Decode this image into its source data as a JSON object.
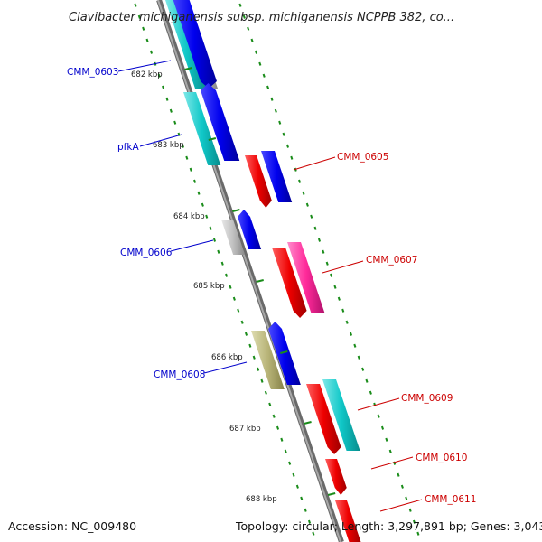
{
  "title": "Clavibacter michiganensis subsp. michiganensis NCPPB 382, co...",
  "footer": {
    "accession": "Accession: NC_009480",
    "summary": "Topology: circular; Length: 3,297,891 bp; Genes: 3,043"
  },
  "kbp_labels": [
    "682 kbp",
    "683 kbp",
    "684 kbp",
    "685 kbp",
    "686 kbp",
    "687 kbp",
    "688 kbp"
  ],
  "genes_left": [
    {
      "label": "CMM_0603",
      "color": "#0000cc"
    },
    {
      "label": "pfkA",
      "color": "#0000cc"
    },
    {
      "label": "CMM_0606",
      "color": "#0000cc"
    },
    {
      "label": "CMM_0608",
      "color": "#0000cc"
    }
  ],
  "genes_right": [
    {
      "label": "CMM_0605",
      "color": "#cc0000"
    },
    {
      "label": "CMM_0607",
      "color": "#cc0000"
    },
    {
      "label": "CMM_0609",
      "color": "#cc0000"
    },
    {
      "label": "CMM_0610",
      "color": "#cc0000"
    },
    {
      "label": "CMM_0611",
      "color": "#cc0000"
    }
  ],
  "colors": {
    "backbone": "#808080",
    "tick": "#1a8c1a",
    "cds_blue": "#0000ee",
    "cds_cyan": "#10c8c8",
    "cds_grey": "#c0c0c0",
    "cds_red": "#ee0000",
    "cds_pink": "#ff2a9a",
    "cds_olive": "#b8b478"
  }
}
